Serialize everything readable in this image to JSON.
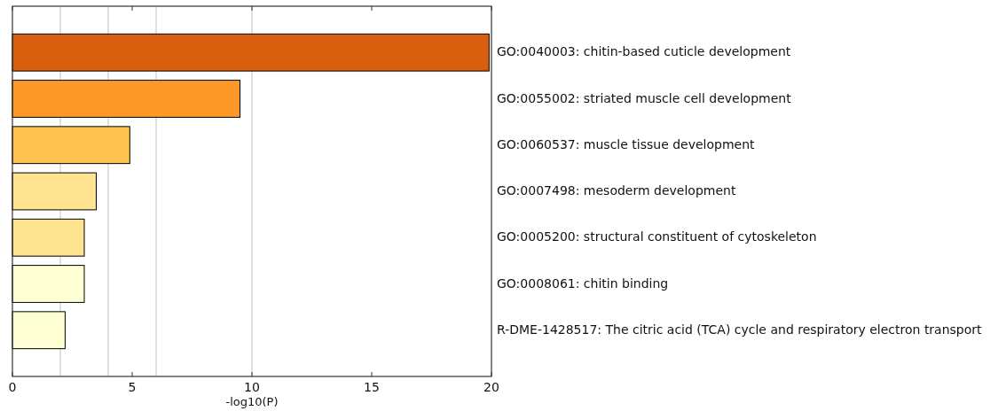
{
  "chart_data": {
    "type": "bar",
    "orientation": "horizontal",
    "categories": [
      "GO:0040003: chitin-based cuticle development",
      "GO:0055002: striated muscle cell development",
      "GO:0060537: muscle tissue development",
      "GO:0007498: mesoderm development",
      "GO:0005200: structural constituent of cytoskeleton",
      "GO:0008061: chitin binding",
      "R-DME-1428517: The citric acid (TCA) cycle and respiratory electron transport"
    ],
    "values": [
      19.9,
      9.5,
      4.9,
      3.5,
      3.0,
      3.0,
      2.2
    ],
    "colors": [
      "#d95f0e",
      "#fe9929",
      "#fec44f",
      "#fee391",
      "#fee391",
      "#ffffd4",
      "#ffffd4"
    ],
    "xlabel": "-log10(P)",
    "xlim": [
      0,
      20
    ],
    "xticks": [
      0,
      5,
      10,
      15,
      20
    ],
    "ref_lines": [
      {
        "axis": "x",
        "value": 2,
        "color": "#c0c0c0"
      },
      {
        "axis": "x",
        "value": 4,
        "color": "#c0c0c0"
      },
      {
        "axis": "x",
        "value": 6,
        "color": "#c0c0c0"
      },
      {
        "axis": "x",
        "value": 10,
        "color": "#c0c0c0"
      }
    ]
  }
}
